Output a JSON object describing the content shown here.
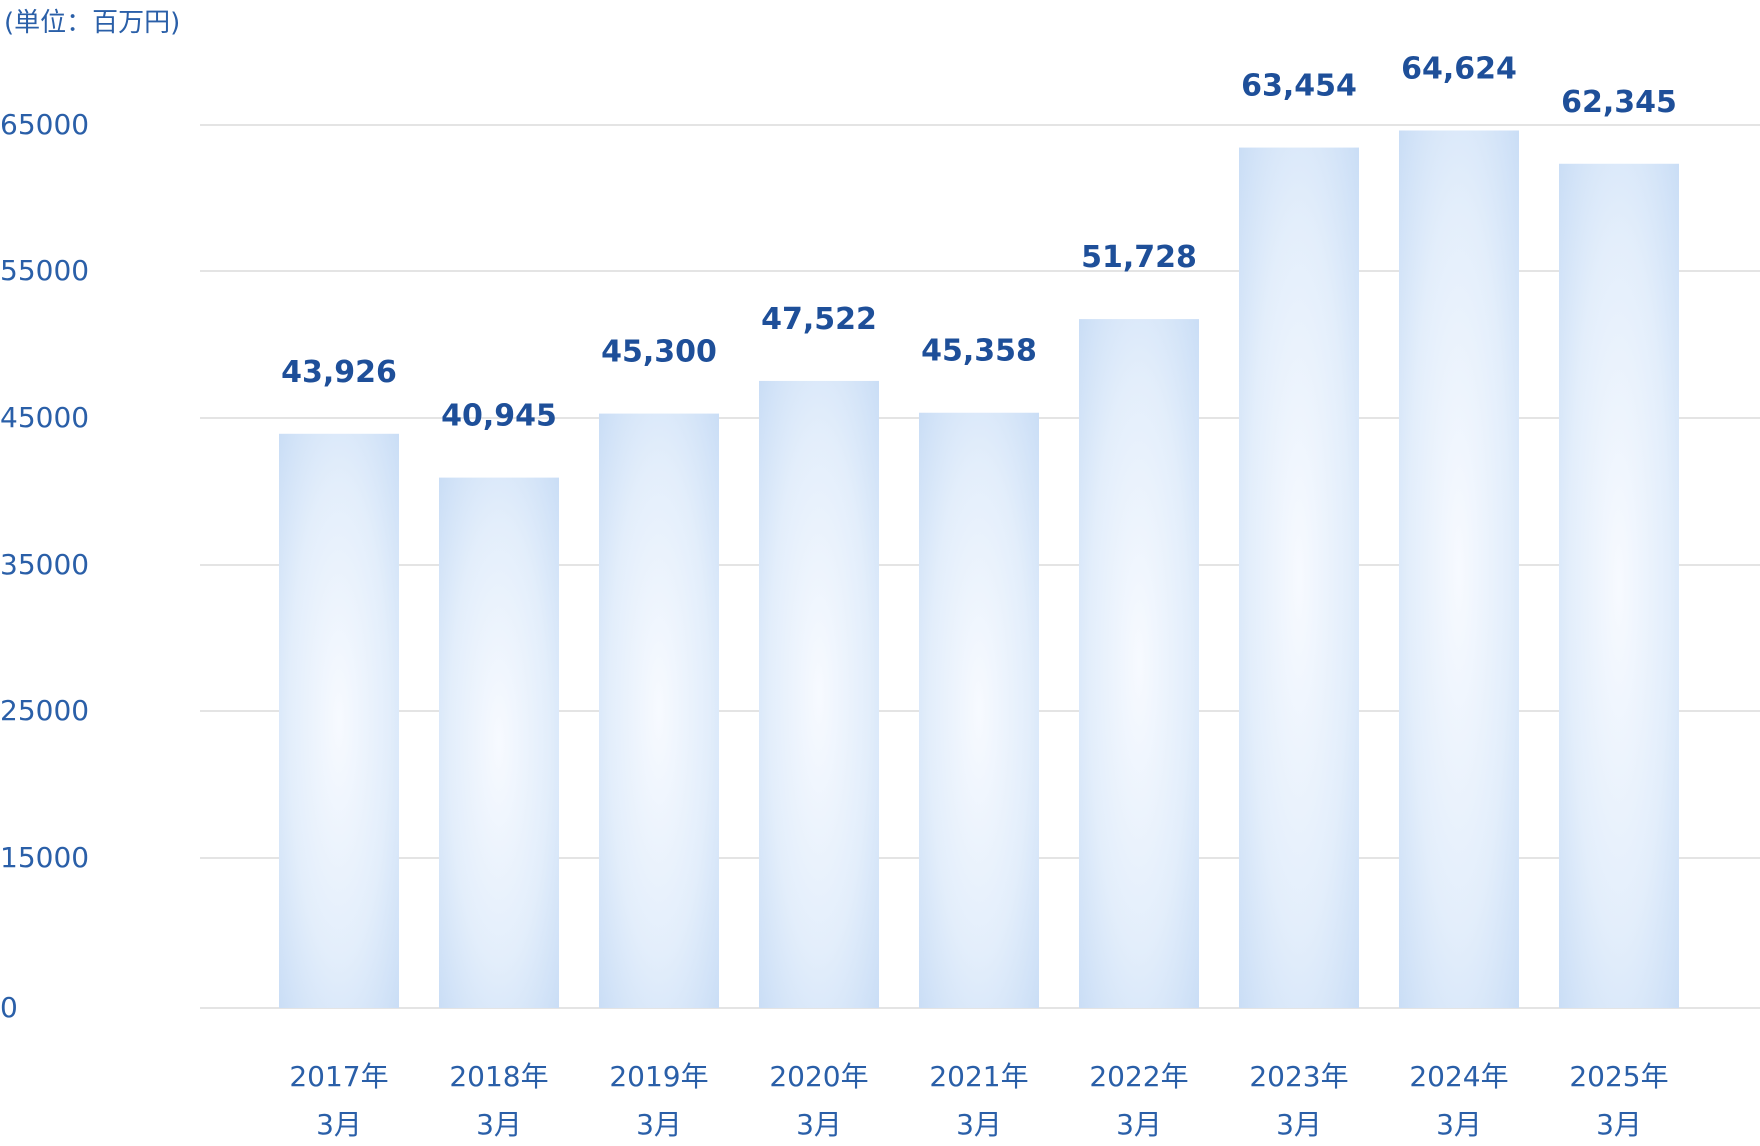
{
  "unit_label": "(単位：百万円)",
  "colors": {
    "axis_text": "#2a5fa8",
    "value_text": "#1e4f99",
    "grid": "#dcdcdc",
    "bar_edge": "#c8dcf5",
    "bar_center": "#f4f8fe"
  },
  "chart_data": {
    "type": "bar",
    "categories": [
      [
        "2017年",
        "3月"
      ],
      [
        "2018年",
        "3月"
      ],
      [
        "2019年",
        "3月"
      ],
      [
        "2020年",
        "3月"
      ],
      [
        "2021年",
        "3月"
      ],
      [
        "2022年",
        "3月"
      ],
      [
        "2023年",
        "3月"
      ],
      [
        "2024年",
        "3月"
      ],
      [
        "2025年",
        "3月"
      ]
    ],
    "values": [
      43926,
      40945,
      45300,
      47522,
      45358,
      51728,
      63454,
      64624,
      62345
    ],
    "value_labels": [
      "43,926",
      "40,945",
      "45,300",
      "47,522",
      "45,358",
      "51,728",
      "63,454",
      "64,624",
      "62,345"
    ],
    "yticks": [
      0,
      15000,
      25000,
      35000,
      45000,
      55000,
      65000
    ],
    "ytick_labels": [
      "0",
      "15000",
      "25000",
      "35000",
      "45000",
      "55000",
      "65000"
    ],
    "grid": true,
    "legend": "none"
  }
}
